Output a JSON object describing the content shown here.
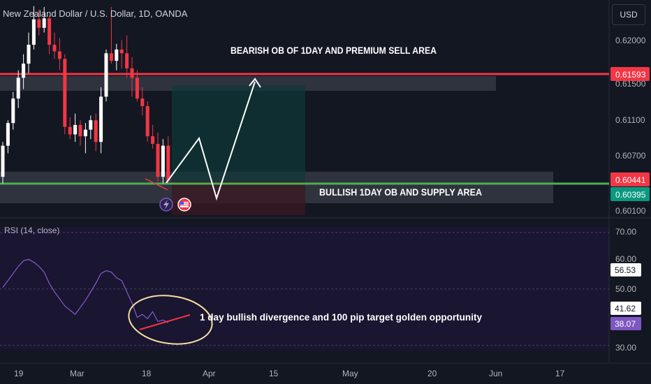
{
  "header": {
    "symbol_title": "New Zealand Dollar / U.S. Dollar, 1D, OANDA",
    "currency_button": "USD"
  },
  "price_axis": {
    "ticks": [
      "0.62000",
      "0.61500",
      "0.61100",
      "0.60700",
      "0.60100"
    ],
    "badges": [
      {
        "text": "0.61593",
        "color": "#f23645"
      },
      {
        "text": "0.60441",
        "color": "#f23645"
      },
      {
        "text": "0.60395",
        "color": "#089981"
      }
    ]
  },
  "annotations": {
    "bearish_zone": "BEARISH OB OF 1DAY AND PREMIUM SELL AREA",
    "bullish_zone": "BULLISH 1DAY OB  AND SUPPLY AREA",
    "divergence_note": "1 day bullish divergence and 100 pip  target golden opportunity"
  },
  "rsi_panel": {
    "title": "RSI (14, close)",
    "ticks": [
      "70.00",
      "60.00",
      "50.00",
      "30.00"
    ],
    "badges": [
      {
        "text": "56.53",
        "style": "light"
      },
      {
        "text": "41.62",
        "style": "light"
      },
      {
        "text": "38.07",
        "style": "purple"
      }
    ]
  },
  "time_axis": {
    "labels": [
      "19",
      "Mar",
      "18",
      "Apr",
      "15",
      "May",
      "20",
      "Jun",
      "17"
    ]
  },
  "colors": {
    "up": "#ffffff",
    "down": "#f23645",
    "resistance": "#f23645",
    "support": "#4caf50",
    "rsi_line": "#7e57c2",
    "background": "#131722"
  },
  "chart_data": {
    "type": "candlestick",
    "title": "New Zealand Dollar / U.S. Dollar, 1D, OANDA",
    "y_range": [
      0.6003,
      0.6231
    ],
    "horizontal_levels": [
      {
        "value": 0.61593,
        "color": "#f23645"
      },
      {
        "value": 0.60395,
        "color": "#4caf50"
      }
    ],
    "candles": [
      {
        "o": 0.6045,
        "h": 0.6082,
        "l": 0.6038,
        "c": 0.6078
      },
      {
        "o": 0.6078,
        "h": 0.6105,
        "l": 0.607,
        "c": 0.6102
      },
      {
        "o": 0.6102,
        "h": 0.6135,
        "l": 0.6095,
        "c": 0.6128
      },
      {
        "o": 0.6128,
        "h": 0.6158,
        "l": 0.6118,
        "c": 0.615
      },
      {
        "o": 0.615,
        "h": 0.6175,
        "l": 0.6138,
        "c": 0.6165
      },
      {
        "o": 0.6165,
        "h": 0.6198,
        "l": 0.6155,
        "c": 0.6185
      },
      {
        "o": 0.6185,
        "h": 0.6226,
        "l": 0.618,
        "c": 0.6212
      },
      {
        "o": 0.6212,
        "h": 0.6222,
        "l": 0.6195,
        "c": 0.6203
      },
      {
        "o": 0.6203,
        "h": 0.6225,
        "l": 0.6198,
        "c": 0.6213
      },
      {
        "o": 0.6213,
        "h": 0.6216,
        "l": 0.6175,
        "c": 0.6185
      },
      {
        "o": 0.6185,
        "h": 0.6198,
        "l": 0.617,
        "c": 0.6178
      },
      {
        "o": 0.6178,
        "h": 0.6192,
        "l": 0.6158,
        "c": 0.617
      },
      {
        "o": 0.617,
        "h": 0.6175,
        "l": 0.609,
        "c": 0.6098
      },
      {
        "o": 0.6098,
        "h": 0.6108,
        "l": 0.6085,
        "c": 0.609
      },
      {
        "o": 0.609,
        "h": 0.6112,
        "l": 0.6082,
        "c": 0.61
      },
      {
        "o": 0.61,
        "h": 0.6105,
        "l": 0.6078,
        "c": 0.6088
      },
      {
        "o": 0.6088,
        "h": 0.6102,
        "l": 0.607,
        "c": 0.6095
      },
      {
        "o": 0.6095,
        "h": 0.611,
        "l": 0.6085,
        "c": 0.6105
      },
      {
        "o": 0.6105,
        "h": 0.6112,
        "l": 0.6072,
        "c": 0.6082
      },
      {
        "o": 0.6082,
        "h": 0.614,
        "l": 0.607,
        "c": 0.613
      },
      {
        "o": 0.613,
        "h": 0.618,
        "l": 0.6125,
        "c": 0.6176
      },
      {
        "o": 0.6176,
        "h": 0.6225,
        "l": 0.6165,
        "c": 0.6168
      },
      {
        "o": 0.6168,
        "h": 0.6186,
        "l": 0.6158,
        "c": 0.618
      },
      {
        "o": 0.618,
        "h": 0.619,
        "l": 0.616,
        "c": 0.6176
      },
      {
        "o": 0.6176,
        "h": 0.6195,
        "l": 0.615,
        "c": 0.616
      },
      {
        "o": 0.616,
        "h": 0.6172,
        "l": 0.613,
        "c": 0.615
      },
      {
        "o": 0.615,
        "h": 0.6158,
        "l": 0.6125,
        "c": 0.6128
      },
      {
        "o": 0.6128,
        "h": 0.614,
        "l": 0.611,
        "c": 0.612
      },
      {
        "o": 0.612,
        "h": 0.6125,
        "l": 0.6082,
        "c": 0.6088
      },
      {
        "o": 0.6088,
        "h": 0.61,
        "l": 0.6075,
        "c": 0.608
      },
      {
        "o": 0.608,
        "h": 0.6092,
        "l": 0.604,
        "c": 0.6045
      },
      {
        "o": 0.6045,
        "h": 0.6085,
        "l": 0.6038,
        "c": 0.6078
      },
      {
        "o": 0.6078,
        "h": 0.6088,
        "l": 0.6038,
        "c": 0.6041
      }
    ],
    "rsi": {
      "name": "RSI (14, close)",
      "y_range": [
        25,
        72
      ],
      "values": [
        50.5,
        53,
        55.5,
        58,
        60,
        60.5,
        59.5,
        58,
        56,
        52,
        49,
        46.5,
        44,
        42.5,
        41,
        43.5,
        46,
        49,
        52,
        55.5,
        56.5,
        56,
        54,
        53,
        49,
        45,
        40,
        41,
        39.5,
        42,
        38.5,
        39,
        38.07
      ]
    },
    "projection_path": [
      {
        "date": "Mar 22",
        "price": 0.604
      },
      {
        "date": "Mar 27",
        "price": 0.609
      },
      {
        "date": "Apr 1",
        "price": 0.6025
      },
      {
        "date": "Apr 10",
        "price": 0.6152
      }
    ]
  }
}
